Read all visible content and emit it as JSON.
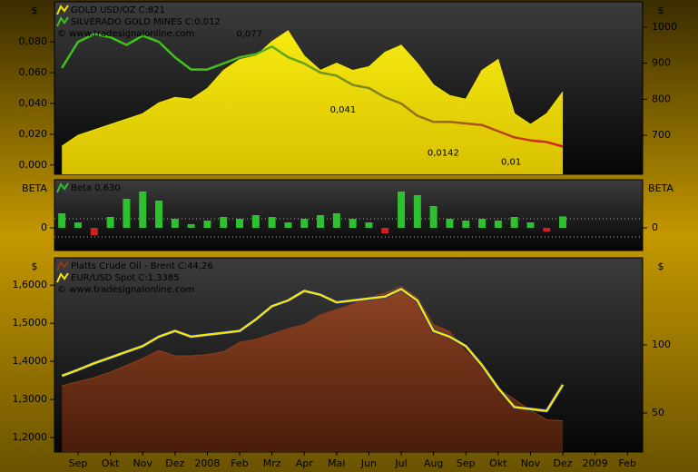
{
  "chart_data": [
    {
      "type": "line-area",
      "ylabel": "$",
      "y2label": "$",
      "x": [
        -0.5,
        0,
        0.5,
        1,
        1.5,
        2,
        2.5,
        3,
        3.5,
        4,
        4.5,
        5,
        5.5,
        6,
        6.5,
        7,
        7.5,
        8,
        8.5,
        9,
        9.5,
        10,
        10.5,
        11,
        11.5,
        12,
        12.5,
        13,
        13.5,
        14,
        14.5,
        15
      ],
      "xlim": [
        -0.73,
        17.47
      ],
      "ylim": [
        -0.006,
        0.106
      ],
      "yticks": [
        {
          "value": 0,
          "label": "0,000"
        },
        {
          "value": 0.02,
          "label": "0,020"
        },
        {
          "value": 0.04,
          "label": "0,040"
        },
        {
          "value": 0.06,
          "label": "0,060"
        },
        {
          "value": 0.08,
          "label": "0,080"
        }
      ],
      "y2lim": [
        592,
        1070
      ],
      "y2ticks": [
        700,
        800,
        900,
        1000
      ],
      "series": [
        {
          "name": "GOLD USD/OZ",
          "last": "C:821",
          "axis": "y2",
          "style": "area",
          "color": "#f2e400",
          "values": [
            670,
            700,
            715,
            730,
            745,
            760,
            790,
            805,
            800,
            830,
            880,
            910,
            920,
            960,
            990,
            920,
            880,
            900,
            880,
            890,
            930,
            950,
            900,
            840,
            810,
            800,
            880,
            910,
            760,
            730,
            760,
            821
          ]
        },
        {
          "name": "SILVERADO GOLD MINES",
          "last": "C:0,012",
          "style": "line",
          "colors": [
            "#3ec41a",
            "#6f9a1c",
            "#9a6a22",
            "#d82020"
          ],
          "values": [
            0.063,
            0.08,
            0.085,
            0.083,
            0.078,
            0.084,
            0.08,
            0.07,
            0.062,
            0.062,
            0.066,
            0.07,
            0.072,
            0.077,
            0.07,
            0.066,
            0.06,
            0.058,
            0.052,
            0.05,
            0.044,
            0.04,
            0.032,
            0.028,
            0.028,
            0.027,
            0.026,
            0.022,
            0.018,
            0.016,
            0.015,
            0.012
          ]
        }
      ],
      "copyright": "© www.tradesignalonline.com",
      "annotations": [
        {
          "text": "0,077",
          "x": 5.3,
          "y": 0.085,
          "color": "#3ec41a"
        },
        {
          "text": "0,041",
          "x": 8.2,
          "y": 0.036,
          "color": "#d82020"
        },
        {
          "text": "0,0142",
          "x": 11.3,
          "y": 0.008,
          "color": "#d82020"
        },
        {
          "text": "0,01",
          "x": 13.4,
          "y": 0.002,
          "color": "#d82020"
        }
      ]
    },
    {
      "type": "bar",
      "ylabel": "BETA",
      "y2label": "BETA",
      "x": [
        -0.5,
        0,
        0.5,
        1,
        1.5,
        2,
        2.5,
        3,
        3.5,
        4,
        4.5,
        5,
        5.5,
        6,
        6.5,
        7,
        7.5,
        8,
        8.5,
        9,
        9.5,
        10,
        10.5,
        11,
        11.5,
        12,
        12.5,
        13,
        13.5,
        14,
        14.5,
        15
      ],
      "xlim": [
        -0.73,
        17.47
      ],
      "ylim": [
        -1.25,
        2.65
      ],
      "yticks": [
        0
      ],
      "y2lim": [
        -1.25,
        2.65
      ],
      "y2ticks": [
        0
      ],
      "reference_lines": [
        0.5,
        -0.5
      ],
      "series": [
        {
          "name": "Beta",
          "last": "0,630",
          "color": "#2ec02e",
          "negative_color": "#d02020",
          "values": [
            0.8,
            0.3,
            -0.4,
            0.6,
            1.6,
            2.0,
            1.5,
            0.5,
            0.2,
            0.4,
            0.6,
            0.5,
            0.7,
            0.6,
            0.3,
            0.5,
            0.7,
            0.8,
            0.5,
            0.3,
            -0.3,
            2.0,
            1.8,
            1.2,
            0.5,
            0.4,
            0.5,
            0.4,
            0.6,
            0.3,
            -0.2,
            0.63
          ]
        }
      ]
    },
    {
      "type": "line-area",
      "ylabel": "$",
      "y2label": "$",
      "x": [
        -0.5,
        0,
        0.5,
        1,
        1.5,
        2,
        2.5,
        3,
        3.5,
        4,
        4.5,
        5,
        5.5,
        6,
        6.5,
        7,
        7.5,
        8,
        8.5,
        9,
        9.5,
        10,
        10.5,
        11,
        11.5,
        12,
        12.5,
        13,
        13.5,
        14,
        14.5,
        15
      ],
      "xlim": [
        -0.73,
        17.47
      ],
      "xticks": [
        {
          "value": 0,
          "label": "Sep"
        },
        {
          "value": 1,
          "label": "Okt"
        },
        {
          "value": 2,
          "label": "Nov"
        },
        {
          "value": 3,
          "label": "Dez"
        },
        {
          "value": 4,
          "label": "2008"
        },
        {
          "value": 5,
          "label": "Feb"
        },
        {
          "value": 6,
          "label": "Mrz"
        },
        {
          "value": 7,
          "label": "Apr"
        },
        {
          "value": 8,
          "label": "Mai"
        },
        {
          "value": 9,
          "label": "Jun"
        },
        {
          "value": 10,
          "label": "Jul"
        },
        {
          "value": 11,
          "label": "Aug"
        },
        {
          "value": 12,
          "label": "Sep"
        },
        {
          "value": 13,
          "label": "Okt"
        },
        {
          "value": 14,
          "label": "Nov"
        },
        {
          "value": 15,
          "label": "Dez"
        },
        {
          "value": 16,
          "label": "2009"
        },
        {
          "value": 17,
          "label": "Feb"
        }
      ],
      "ylim": [
        1.162,
        1.672
      ],
      "yticks": [
        {
          "value": 1.2,
          "label": "1,2000"
        },
        {
          "value": 1.3,
          "label": "1,3000"
        },
        {
          "value": 1.4,
          "label": "1,4000"
        },
        {
          "value": 1.5,
          "label": "1,5000"
        },
        {
          "value": 1.6,
          "label": "1,6000"
        }
      ],
      "y2lim": [
        21.3,
        164
      ],
      "y2ticks": [
        50,
        100
      ],
      "series": [
        {
          "name": "Platts Crude Oil - Brent",
          "last": "C:44,26",
          "axis": "y2",
          "style": "area",
          "color": "#8a3c1c",
          "values": [
            70,
            73,
            76,
            80,
            85,
            90,
            96,
            92,
            92,
            93,
            95,
            102,
            104,
            108,
            112,
            115,
            122,
            126,
            130,
            135,
            138,
            143,
            135,
            115,
            110,
            95,
            85,
            68,
            60,
            52,
            45,
            44.26
          ]
        },
        {
          "name": "EUR/USD Spot",
          "last": "C:1,3385",
          "style": "line",
          "color": "#f5e600",
          "outline": "#1a2a9a",
          "values": [
            1.362,
            1.378,
            1.395,
            1.41,
            1.425,
            1.44,
            1.465,
            1.48,
            1.465,
            1.47,
            1.475,
            1.48,
            1.51,
            1.545,
            1.56,
            1.585,
            1.575,
            1.555,
            1.56,
            1.565,
            1.57,
            1.59,
            1.56,
            1.48,
            1.465,
            1.44,
            1.39,
            1.33,
            1.28,
            1.275,
            1.27,
            1.3385
          ]
        }
      ],
      "copyright": "© www.tradesignalonline.com"
    }
  ]
}
